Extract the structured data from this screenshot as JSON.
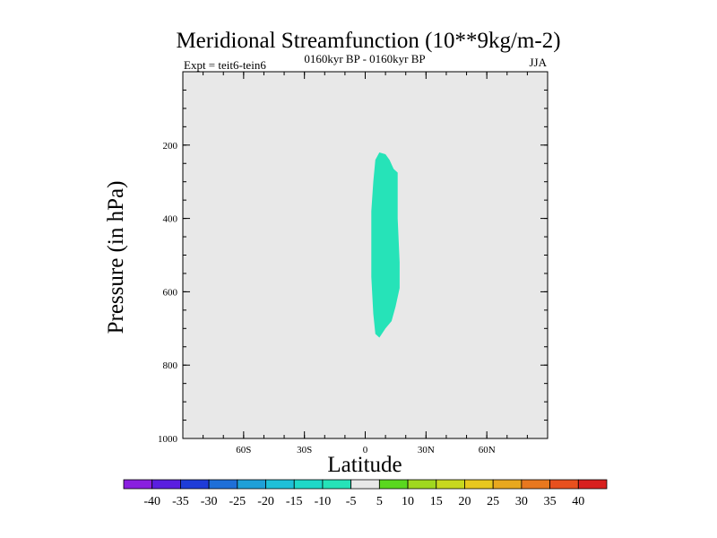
{
  "chart_data": {
    "type": "contour",
    "title": "Meridional Streamfunction (10**9kg/m-2)",
    "left_label": "Expt = teit6-tein6",
    "center_label": "0160kyr BP - 0160kyr BP",
    "right_label": "JJA",
    "xlabel": "Latitude",
    "ylabel": "Pressure (in hPa)",
    "xlim": [
      -90,
      90
    ],
    "ylim": [
      1000,
      0
    ],
    "x_ticks": [
      {
        "value": -60,
        "label": "60S"
      },
      {
        "value": -30,
        "label": "30S"
      },
      {
        "value": 0,
        "label": "0"
      },
      {
        "value": 30,
        "label": "30N"
      },
      {
        "value": 60,
        "label": "60N"
      }
    ],
    "y_ticks": [
      {
        "value": 200,
        "label": "200"
      },
      {
        "value": 400,
        "label": "400"
      },
      {
        "value": 600,
        "label": "600"
      },
      {
        "value": 800,
        "label": "800"
      },
      {
        "value": 1000,
        "label": "1000"
      }
    ],
    "y_minor_step": 50,
    "x_minor_step": 10,
    "background_color": "#e8e8e8",
    "filled_regions": [
      {
        "level_range": [
          -10,
          -5
        ],
        "color": "#26e3b8",
        "points": [
          [
            7,
            220
          ],
          [
            10,
            225
          ],
          [
            12,
            240
          ],
          [
            14,
            265
          ],
          [
            16,
            275
          ],
          [
            16,
            400
          ],
          [
            17,
            520
          ],
          [
            17,
            590
          ],
          [
            15,
            640
          ],
          [
            13,
            680
          ],
          [
            10,
            700
          ],
          [
            7,
            725
          ],
          [
            5,
            715
          ],
          [
            4,
            660
          ],
          [
            3,
            560
          ],
          [
            3,
            480
          ],
          [
            3,
            380
          ],
          [
            4,
            300
          ],
          [
            5,
            240
          ]
        ]
      }
    ],
    "colorbar": {
      "levels": [
        "-40",
        "-35",
        "-30",
        "-25",
        "-20",
        "-15",
        "-10",
        "-5",
        "5",
        "10",
        "15",
        "20",
        "25",
        "30",
        "35",
        "40"
      ],
      "colors": [
        "#8a1fe0",
        "#5a1ee0",
        "#1e3cd8",
        "#1e6fd8",
        "#1ea0d8",
        "#1ec0d8",
        "#1ed8c8",
        "#26e3b8",
        "#e8e8e8",
        "#5ad81e",
        "#a0d81e",
        "#c8d81e",
        "#e8c81e",
        "#e8a81e",
        "#e8781e",
        "#e8501e",
        "#d8201e"
      ]
    }
  }
}
